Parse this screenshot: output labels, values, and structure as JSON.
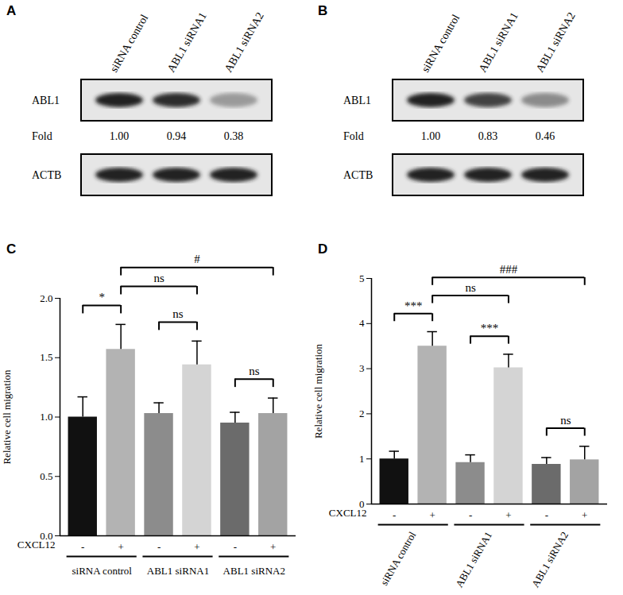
{
  "blots": [
    {
      "panel": "A",
      "lanes": [
        "siRNA control",
        "ABL1 siRNA1",
        "ABL1 siRNA2"
      ],
      "rows": [
        {
          "label": "ABL1",
          "fold_label": "Fold",
          "fold": [
            1.0,
            0.94,
            0.38
          ],
          "fold_labels": [
            "1.00",
            "0.94",
            "0.38"
          ]
        },
        {
          "label": "ACTB"
        }
      ]
    },
    {
      "panel": "B",
      "lanes": [
        "siRNA control",
        "ABL1 siRNA1",
        "ABL1 siRNA2"
      ],
      "rows": [
        {
          "label": "ABL1",
          "fold_label": "Fold",
          "fold": [
            1.0,
            0.83,
            0.46
          ],
          "fold_labels": [
            "1.00",
            "0.83",
            "0.46"
          ]
        },
        {
          "label": "ACTB"
        }
      ]
    }
  ],
  "chart_data": [
    {
      "type": "bar",
      "panel": "C",
      "categories": [
        "-",
        "+",
        "-",
        "+",
        "-",
        "+"
      ],
      "values": [
        1.0,
        1.57,
        1.03,
        1.44,
        0.95,
        1.03
      ],
      "errors": [
        0.17,
        0.21,
        0.09,
        0.2,
        0.09,
        0.13
      ],
      "colors": [
        "#111111",
        "#b3b3b3",
        "#8c8c8c",
        "#d4d4d4",
        "#6b6b6b",
        "#a3a3a3"
      ],
      "ylabel": "Relative cell migration",
      "xlabel": "CXCL12",
      "ylim": [
        0,
        2
      ],
      "yticks": [
        {
          "value": 0,
          "label": "0.0"
        },
        {
          "value": 0.5,
          "label": "0.5"
        },
        {
          "value": 1,
          "label": "1.0"
        },
        {
          "value": 1.5,
          "label": "1.5"
        },
        {
          "value": 2,
          "label": "2.0"
        }
      ],
      "groups": [
        {
          "label": "siRNA control",
          "from": 0,
          "to": 1
        },
        {
          "label": "ABL1 siRNA1",
          "from": 2,
          "to": 3
        },
        {
          "label": "ABL1 siRNA2",
          "from": 4,
          "to": 5
        }
      ],
      "brackets": [
        {
          "from": 0,
          "to": 1,
          "label": "*"
        },
        {
          "from": 2,
          "to": 3,
          "label": "ns"
        },
        {
          "from": 4,
          "to": 5,
          "label": "ns"
        },
        {
          "from": 1,
          "to": 3,
          "label": "ns"
        },
        {
          "from": 1,
          "to": 5,
          "label": "#"
        }
      ]
    },
    {
      "type": "bar",
      "panel": "D",
      "categories": [
        "-",
        "+",
        "-",
        "+",
        "-",
        "+"
      ],
      "values": [
        1.0,
        3.5,
        0.92,
        3.02,
        0.88,
        0.98
      ],
      "errors": [
        0.17,
        0.32,
        0.17,
        0.3,
        0.15,
        0.3
      ],
      "colors": [
        "#111111",
        "#b3b3b3",
        "#8c8c8c",
        "#d4d4d4",
        "#6b6b6b",
        "#a3a3a3"
      ],
      "ylabel": "Relative cell migration",
      "xlabel": "CXCL12",
      "ylim": [
        0,
        5
      ],
      "yticks": [
        0,
        1,
        2,
        3,
        4,
        5
      ],
      "groups": [
        {
          "label": "siRNA control",
          "from": 0,
          "to": 1
        },
        {
          "label": "ABL1 siRNA1",
          "from": 2,
          "to": 3
        },
        {
          "label": "ABL1 siRNA2",
          "from": 4,
          "to": 5
        }
      ],
      "brackets": [
        {
          "from": 0,
          "to": 1,
          "label": "***"
        },
        {
          "from": 2,
          "to": 3,
          "label": "***"
        },
        {
          "from": 4,
          "to": 5,
          "label": "ns"
        },
        {
          "from": 1,
          "to": 3,
          "label": "ns"
        },
        {
          "from": 1,
          "to": 5,
          "label": "###"
        }
      ]
    }
  ]
}
